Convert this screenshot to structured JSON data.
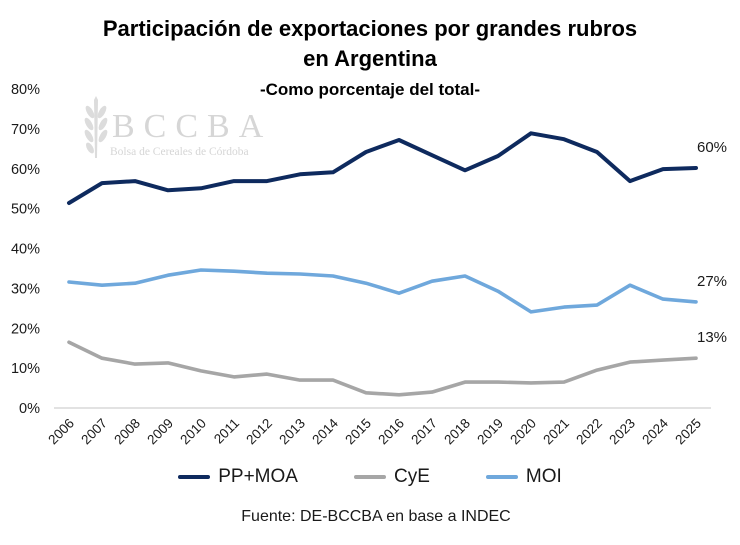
{
  "chart_data": {
    "type": "line",
    "title": "Participación de exportaciones por grandes rubros en Argentina",
    "title_lines": [
      "Participación de exportaciones por grandes rubros",
      "en Argentina"
    ],
    "subtitle": "-Como porcentaje del total-",
    "xlabel": "",
    "ylabel": "",
    "ylim": [
      0,
      80
    ],
    "yticks": [
      0,
      10,
      20,
      30,
      40,
      50,
      60,
      70,
      80
    ],
    "ytick_labels": [
      "0%",
      "10%",
      "20%",
      "30%",
      "40%",
      "50%",
      "60%",
      "70%",
      "80%"
    ],
    "grid": false,
    "categories": [
      "2006",
      "2007",
      "2008",
      "2009",
      "2010",
      "2011",
      "2012",
      "2013",
      "2014",
      "2015",
      "2016",
      "2017",
      "2018",
      "2019",
      "2020",
      "2021",
      "2022",
      "2023",
      "2024",
      "2025"
    ],
    "series": [
      {
        "name": "PP+MOA",
        "color": "#0e2a5e",
        "values": [
          51.4,
          56.4,
          56.9,
          54.6,
          55.1,
          56.9,
          56.9,
          58.6,
          59.1,
          64.2,
          67.2,
          63.4,
          59.6,
          63.2,
          68.9,
          67.4,
          64.2,
          56.9,
          59.9,
          60.2
        ],
        "end_label": "60%"
      },
      {
        "name": "CyE",
        "color": "#a6a6a6",
        "values": [
          16.5,
          12.5,
          11.0,
          11.3,
          9.3,
          7.8,
          8.5,
          7.0,
          7.0,
          3.8,
          3.3,
          4.0,
          6.5,
          6.5,
          6.3,
          6.5,
          9.5,
          11.5,
          12.0,
          12.5
        ],
        "end_label": "13%"
      },
      {
        "name": "MOI",
        "color": "#6fa8dc",
        "values": [
          31.6,
          30.8,
          31.3,
          33.3,
          34.6,
          34.3,
          33.8,
          33.6,
          33.1,
          31.3,
          28.8,
          31.8,
          33.1,
          29.3,
          24.1,
          25.3,
          25.8,
          30.8,
          27.3,
          26.6
        ],
        "end_label": "27%"
      }
    ],
    "legend": [
      "PP+MOA",
      "CyE",
      "MOI"
    ],
    "legend_position": "bottom",
    "source": "Fuente: DE-BCCBA en base a INDEC",
    "watermark": {
      "letters": "BCCBA",
      "tagline": "Bolsa de Cereales de Córdoba"
    }
  }
}
